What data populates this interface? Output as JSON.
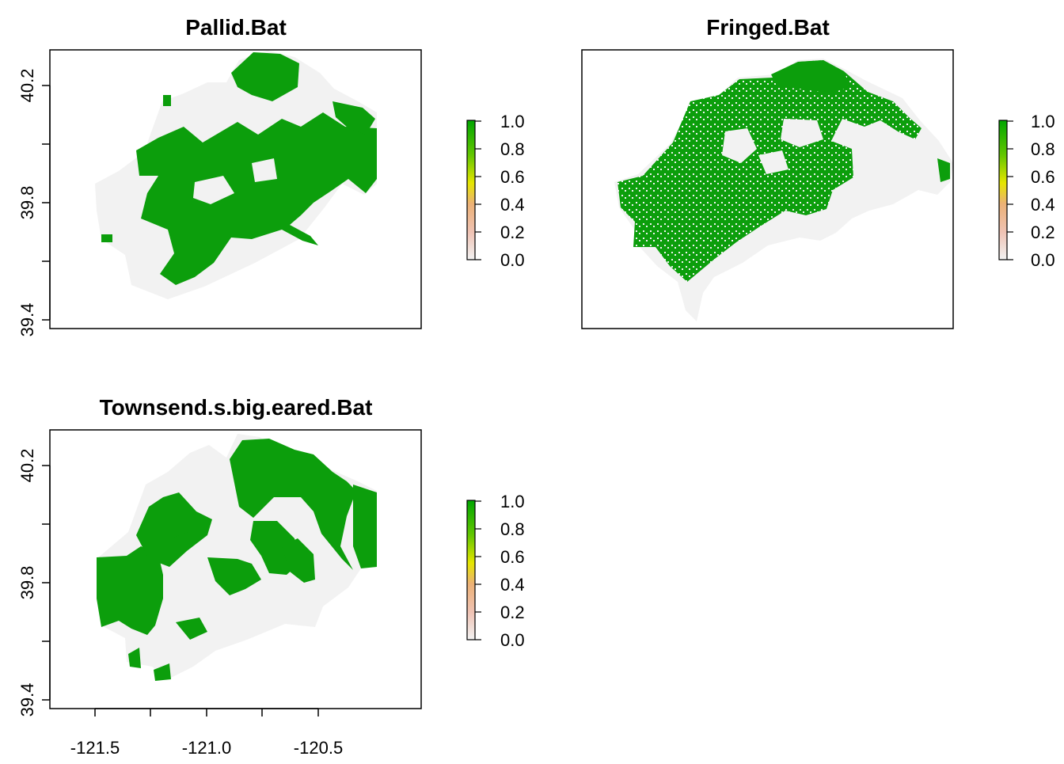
{
  "panels": [
    {
      "title": "Pallid.Bat",
      "y_ticks": [
        "40.2",
        "39.8",
        "39.4"
      ],
      "x_ticks": [],
      "legend": [
        "1.0",
        "0.8",
        "0.6",
        "0.4",
        "0.2",
        "0.0"
      ]
    },
    {
      "title": "Fringed.Bat",
      "y_ticks": [],
      "x_ticks": [],
      "legend": [
        "1.0",
        "0.8",
        "0.6",
        "0.4",
        "0.2",
        "0.0"
      ]
    },
    {
      "title": "Townsend.s.big.eared.Bat",
      "y_ticks": [
        "40.2",
        "39.8",
        "39.4"
      ],
      "x_ticks": [
        "-121.5",
        "-121.0",
        "-120.5"
      ],
      "legend": [
        "1.0",
        "0.8",
        "0.6",
        "0.4",
        "0.2",
        "0.0"
      ]
    }
  ],
  "colors": {
    "presence": "#0c9e0c",
    "absence": "#f2f2f2",
    "ramp": [
      "#00a600",
      "#63c600",
      "#e6e600",
      "#e9bd3a",
      "#ecb176",
      "#efc2b3",
      "#f2f2f2"
    ]
  }
}
